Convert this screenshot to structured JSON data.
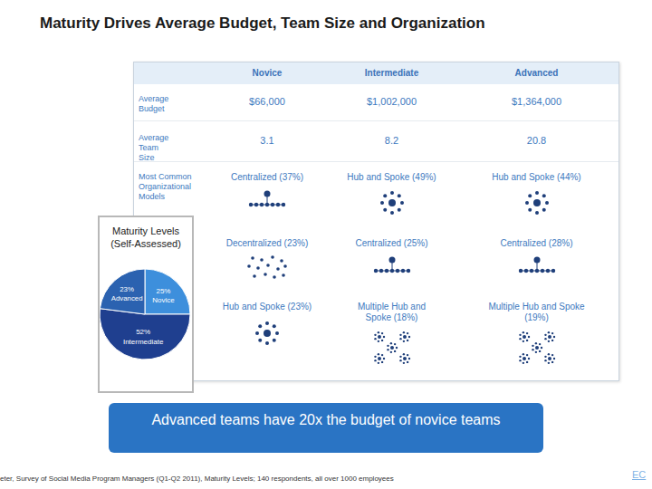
{
  "title": "Maturity Drives Average Budget, Team Size and Organization",
  "table": {
    "header": [
      null,
      "Novice",
      "Intermediate",
      "Advanced"
    ],
    "rows": [
      [
        "Average Budget",
        "$66,000",
        "$1,002,000",
        "$1,364,000"
      ],
      [
        "Average Team Size",
        "3.1",
        "8.2",
        "20.8"
      ],
      [
        "Most Common Organizational Models",
        "Centralized (37%)",
        "Hub and Spoke (49%)",
        "Hub and Spoke (44%)"
      ],
      [
        null,
        "Decentralized (23%)",
        "Centralized (25%)",
        "Centralized (28%)"
      ],
      [
        null,
        "Hub and Spoke (23%)",
        "Multiple Hub and Spoke (18%)",
        "Multiple Hub and Spoke (19%)"
      ]
    ]
  },
  "chart_data": {
    "type": "pie",
    "title": "Maturity Levels (Self-Assessed)",
    "categories": [
      "Novice",
      "Intermediate",
      "Advanced"
    ],
    "values": [
      25,
      52,
      23
    ],
    "value_labels": [
      "25%",
      "52%",
      "23%"
    ],
    "colors": [
      "#3d8fdc",
      "#1f3f8f",
      "#2b62b0"
    ],
    "data_labels": true
  },
  "callout": "Advanced teams have 20x the budget of novice teams",
  "footer": "eter, Survey of Social Media Program Managers (Q1-Q2 2011), Maturity Levels; 140 respondents, all over 1000 employees",
  "page_mark": "EC"
}
